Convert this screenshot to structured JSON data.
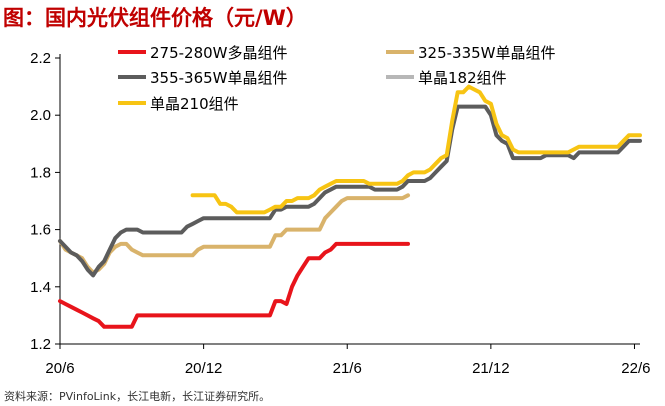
{
  "header": {
    "title": "图：国内光伏组件价格（元/W）"
  },
  "footer": {
    "source": "资料来源：PVinfoLink，长江电新，长江证券研究所。"
  },
  "chart_data": {
    "type": "line",
    "title": "图：国内光伏组件价格（元/W）",
    "xlabel": "",
    "ylabel": "",
    "ylim": [
      1.2,
      2.2
    ],
    "yticks": [
      "1.2",
      "1.4",
      "1.6",
      "1.8",
      "2.0",
      "2.2"
    ],
    "ytick_values": [
      1.2,
      1.4,
      1.6,
      1.8,
      2.0,
      2.2
    ],
    "xticks": [
      "20/6",
      "20/12",
      "21/6",
      "21/12",
      "22/6"
    ],
    "xtick_weeks": [
      0,
      26,
      52,
      78,
      104
    ],
    "x_unit": "week index from 20/6 (weekly prices)",
    "grid": false,
    "legend_position": "top",
    "series": [
      {
        "name": "275-280W多晶组件",
        "color": "#e8141b",
        "points": [
          [
            0,
            1.35
          ],
          [
            1,
            1.34
          ],
          [
            2,
            1.33
          ],
          [
            3,
            1.32
          ],
          [
            4,
            1.31
          ],
          [
            5,
            1.3
          ],
          [
            6,
            1.29
          ],
          [
            7,
            1.28
          ],
          [
            8,
            1.26
          ],
          [
            9,
            1.26
          ],
          [
            10,
            1.26
          ],
          [
            11,
            1.26
          ],
          [
            12,
            1.26
          ],
          [
            13,
            1.26
          ],
          [
            14,
            1.3
          ],
          [
            15,
            1.3
          ],
          [
            16,
            1.3
          ],
          [
            17,
            1.3
          ],
          [
            18,
            1.3
          ],
          [
            19,
            1.3
          ],
          [
            20,
            1.3
          ],
          [
            21,
            1.3
          ],
          [
            22,
            1.3
          ],
          [
            23,
            1.3
          ],
          [
            24,
            1.3
          ],
          [
            25,
            1.3
          ],
          [
            26,
            1.3
          ],
          [
            27,
            1.3
          ],
          [
            28,
            1.3
          ],
          [
            29,
            1.3
          ],
          [
            30,
            1.3
          ],
          [
            31,
            1.3
          ],
          [
            32,
            1.3
          ],
          [
            33,
            1.3
          ],
          [
            34,
            1.3
          ],
          [
            35,
            1.3
          ],
          [
            36,
            1.3
          ],
          [
            37,
            1.3
          ],
          [
            38,
            1.3
          ],
          [
            39,
            1.35
          ],
          [
            40,
            1.35
          ],
          [
            41,
            1.34
          ],
          [
            42,
            1.4
          ],
          [
            43,
            1.44
          ],
          [
            44,
            1.47
          ],
          [
            45,
            1.5
          ],
          [
            46,
            1.5
          ],
          [
            47,
            1.5
          ],
          [
            48,
            1.52
          ],
          [
            49,
            1.53
          ],
          [
            50,
            1.55
          ],
          [
            51,
            1.55
          ],
          [
            52,
            1.55
          ],
          [
            53,
            1.55
          ],
          [
            54,
            1.55
          ],
          [
            55,
            1.55
          ],
          [
            56,
            1.55
          ],
          [
            57,
            1.55
          ],
          [
            58,
            1.55
          ],
          [
            59,
            1.55
          ],
          [
            60,
            1.55
          ],
          [
            61,
            1.55
          ],
          [
            62,
            1.55
          ],
          [
            63,
            1.55
          ]
        ]
      },
      {
        "name": "325-335W单晶组件",
        "color": "#d9b36b",
        "points": [
          [
            0,
            1.56
          ],
          [
            1,
            1.53
          ],
          [
            2,
            1.52
          ],
          [
            3,
            1.51
          ],
          [
            4,
            1.5
          ],
          [
            5,
            1.47
          ],
          [
            6,
            1.45
          ],
          [
            7,
            1.46
          ],
          [
            8,
            1.48
          ],
          [
            9,
            1.52
          ],
          [
            10,
            1.54
          ],
          [
            11,
            1.55
          ],
          [
            12,
            1.55
          ],
          [
            13,
            1.53
          ],
          [
            14,
            1.52
          ],
          [
            15,
            1.51
          ],
          [
            16,
            1.51
          ],
          [
            17,
            1.51
          ],
          [
            18,
            1.51
          ],
          [
            19,
            1.51
          ],
          [
            20,
            1.51
          ],
          [
            21,
            1.51
          ],
          [
            22,
            1.51
          ],
          [
            23,
            1.51
          ],
          [
            24,
            1.51
          ],
          [
            25,
            1.53
          ],
          [
            26,
            1.54
          ],
          [
            27,
            1.54
          ],
          [
            28,
            1.54
          ],
          [
            29,
            1.54
          ],
          [
            30,
            1.54
          ],
          [
            31,
            1.54
          ],
          [
            32,
            1.54
          ],
          [
            33,
            1.54
          ],
          [
            34,
            1.54
          ],
          [
            35,
            1.54
          ],
          [
            36,
            1.54
          ],
          [
            37,
            1.54
          ],
          [
            38,
            1.54
          ],
          [
            39,
            1.58
          ],
          [
            40,
            1.58
          ],
          [
            41,
            1.6
          ],
          [
            42,
            1.6
          ],
          [
            43,
            1.6
          ],
          [
            44,
            1.6
          ],
          [
            45,
            1.6
          ],
          [
            46,
            1.6
          ],
          [
            47,
            1.6
          ],
          [
            48,
            1.64
          ],
          [
            49,
            1.66
          ],
          [
            50,
            1.68
          ],
          [
            51,
            1.7
          ],
          [
            52,
            1.71
          ],
          [
            53,
            1.71
          ],
          [
            54,
            1.71
          ],
          [
            55,
            1.71
          ],
          [
            56,
            1.71
          ],
          [
            57,
            1.71
          ],
          [
            58,
            1.71
          ],
          [
            59,
            1.71
          ],
          [
            60,
            1.71
          ],
          [
            61,
            1.71
          ],
          [
            62,
            1.71
          ],
          [
            63,
            1.72
          ]
        ]
      },
      {
        "name": "355-365W单晶组件",
        "color": "#5c5c5c",
        "points": [
          [
            0,
            1.56
          ],
          [
            1,
            1.54
          ],
          [
            2,
            1.52
          ],
          [
            3,
            1.51
          ],
          [
            4,
            1.49
          ],
          [
            5,
            1.46
          ],
          [
            6,
            1.44
          ],
          [
            7,
            1.47
          ],
          [
            8,
            1.49
          ],
          [
            9,
            1.53
          ],
          [
            10,
            1.57
          ],
          [
            11,
            1.59
          ],
          [
            12,
            1.6
          ],
          [
            13,
            1.6
          ],
          [
            14,
            1.6
          ],
          [
            15,
            1.59
          ],
          [
            16,
            1.59
          ],
          [
            17,
            1.59
          ],
          [
            18,
            1.59
          ],
          [
            19,
            1.59
          ],
          [
            20,
            1.59
          ],
          [
            21,
            1.59
          ],
          [
            22,
            1.59
          ],
          [
            23,
            1.61
          ],
          [
            24,
            1.62
          ],
          [
            25,
            1.63
          ],
          [
            26,
            1.64
          ],
          [
            27,
            1.64
          ],
          [
            28,
            1.64
          ],
          [
            29,
            1.64
          ],
          [
            30,
            1.64
          ],
          [
            31,
            1.64
          ],
          [
            32,
            1.64
          ],
          [
            33,
            1.64
          ],
          [
            34,
            1.64
          ],
          [
            35,
            1.64
          ],
          [
            36,
            1.64
          ],
          [
            37,
            1.64
          ],
          [
            38,
            1.64
          ],
          [
            39,
            1.67
          ],
          [
            40,
            1.67
          ],
          [
            41,
            1.68
          ],
          [
            42,
            1.68
          ],
          [
            43,
            1.68
          ],
          [
            44,
            1.68
          ],
          [
            45,
            1.68
          ],
          [
            46,
            1.69
          ],
          [
            47,
            1.71
          ],
          [
            48,
            1.73
          ],
          [
            49,
            1.74
          ],
          [
            50,
            1.75
          ],
          [
            51,
            1.75
          ],
          [
            52,
            1.75
          ],
          [
            53,
            1.75
          ],
          [
            54,
            1.75
          ],
          [
            55,
            1.75
          ],
          [
            56,
            1.75
          ],
          [
            57,
            1.74
          ],
          [
            58,
            1.74
          ],
          [
            59,
            1.74
          ],
          [
            60,
            1.74
          ],
          [
            61,
            1.74
          ],
          [
            62,
            1.75
          ],
          [
            63,
            1.77
          ],
          [
            64,
            1.77
          ],
          [
            65,
            1.77
          ],
          [
            66,
            1.77
          ],
          [
            67,
            1.78
          ],
          [
            68,
            1.8
          ],
          [
            69,
            1.82
          ],
          [
            70,
            1.84
          ],
          [
            71,
            1.95
          ],
          [
            72,
            2.03
          ],
          [
            73,
            2.03
          ],
          [
            74,
            2.03
          ],
          [
            75,
            2.03
          ],
          [
            76,
            2.03
          ],
          [
            77,
            2.03
          ],
          [
            78,
            2.0
          ],
          [
            79,
            1.93
          ],
          [
            80,
            1.91
          ],
          [
            81,
            1.9
          ],
          [
            82,
            1.85
          ],
          [
            83,
            1.85
          ],
          [
            84,
            1.85
          ],
          [
            85,
            1.85
          ],
          [
            86,
            1.85
          ],
          [
            87,
            1.85
          ],
          [
            88,
            1.86
          ],
          [
            89,
            1.86
          ],
          [
            90,
            1.86
          ],
          [
            91,
            1.86
          ],
          [
            92,
            1.86
          ],
          [
            93,
            1.85
          ],
          [
            94,
            1.87
          ],
          [
            95,
            1.87
          ],
          [
            96,
            1.87
          ],
          [
            97,
            1.87
          ],
          [
            98,
            1.87
          ],
          [
            99,
            1.87
          ],
          [
            100,
            1.87
          ],
          [
            101,
            1.87
          ],
          [
            102,
            1.89
          ],
          [
            103,
            1.91
          ],
          [
            104,
            1.91
          ],
          [
            105,
            1.91
          ]
        ]
      },
      {
        "name": "单晶182组件",
        "color": "#b7b7b7",
        "points": []
      },
      {
        "name": "单晶210组件",
        "color": "#f7c413",
        "points": [
          [
            24,
            1.72
          ],
          [
            25,
            1.72
          ],
          [
            26,
            1.72
          ],
          [
            27,
            1.72
          ],
          [
            28,
            1.72
          ],
          [
            29,
            1.69
          ],
          [
            30,
            1.69
          ],
          [
            31,
            1.68
          ],
          [
            32,
            1.66
          ],
          [
            33,
            1.66
          ],
          [
            34,
            1.66
          ],
          [
            35,
            1.66
          ],
          [
            36,
            1.66
          ],
          [
            37,
            1.66
          ],
          [
            38,
            1.67
          ],
          [
            39,
            1.68
          ],
          [
            40,
            1.68
          ],
          [
            41,
            1.7
          ],
          [
            42,
            1.7
          ],
          [
            43,
            1.71
          ],
          [
            44,
            1.71
          ],
          [
            45,
            1.71
          ],
          [
            46,
            1.72
          ],
          [
            47,
            1.74
          ],
          [
            48,
            1.75
          ],
          [
            49,
            1.76
          ],
          [
            50,
            1.77
          ],
          [
            51,
            1.77
          ],
          [
            52,
            1.77
          ],
          [
            53,
            1.77
          ],
          [
            54,
            1.77
          ],
          [
            55,
            1.77
          ],
          [
            56,
            1.76
          ],
          [
            57,
            1.76
          ],
          [
            58,
            1.76
          ],
          [
            59,
            1.76
          ],
          [
            60,
            1.76
          ],
          [
            61,
            1.76
          ],
          [
            62,
            1.77
          ],
          [
            63,
            1.79
          ],
          [
            64,
            1.8
          ],
          [
            65,
            1.8
          ],
          [
            66,
            1.8
          ],
          [
            67,
            1.81
          ],
          [
            68,
            1.83
          ],
          [
            69,
            1.85
          ],
          [
            70,
            1.86
          ],
          [
            71,
            1.98
          ],
          [
            72,
            2.08
          ],
          [
            73,
            2.08
          ],
          [
            74,
            2.1
          ],
          [
            75,
            2.09
          ],
          [
            76,
            2.08
          ],
          [
            77,
            2.05
          ],
          [
            78,
            2.04
          ],
          [
            79,
            1.97
          ],
          [
            80,
            1.93
          ],
          [
            81,
            1.92
          ],
          [
            82,
            1.88
          ],
          [
            83,
            1.87
          ],
          [
            84,
            1.87
          ],
          [
            85,
            1.87
          ],
          [
            86,
            1.87
          ],
          [
            87,
            1.87
          ],
          [
            88,
            1.87
          ],
          [
            89,
            1.87
          ],
          [
            90,
            1.87
          ],
          [
            91,
            1.87
          ],
          [
            92,
            1.87
          ],
          [
            93,
            1.88
          ],
          [
            94,
            1.89
          ],
          [
            95,
            1.89
          ],
          [
            96,
            1.89
          ],
          [
            97,
            1.89
          ],
          [
            98,
            1.89
          ],
          [
            99,
            1.89
          ],
          [
            100,
            1.89
          ],
          [
            101,
            1.89
          ],
          [
            102,
            1.91
          ],
          [
            103,
            1.93
          ],
          [
            104,
            1.93
          ],
          [
            105,
            1.93
          ]
        ]
      }
    ]
  }
}
